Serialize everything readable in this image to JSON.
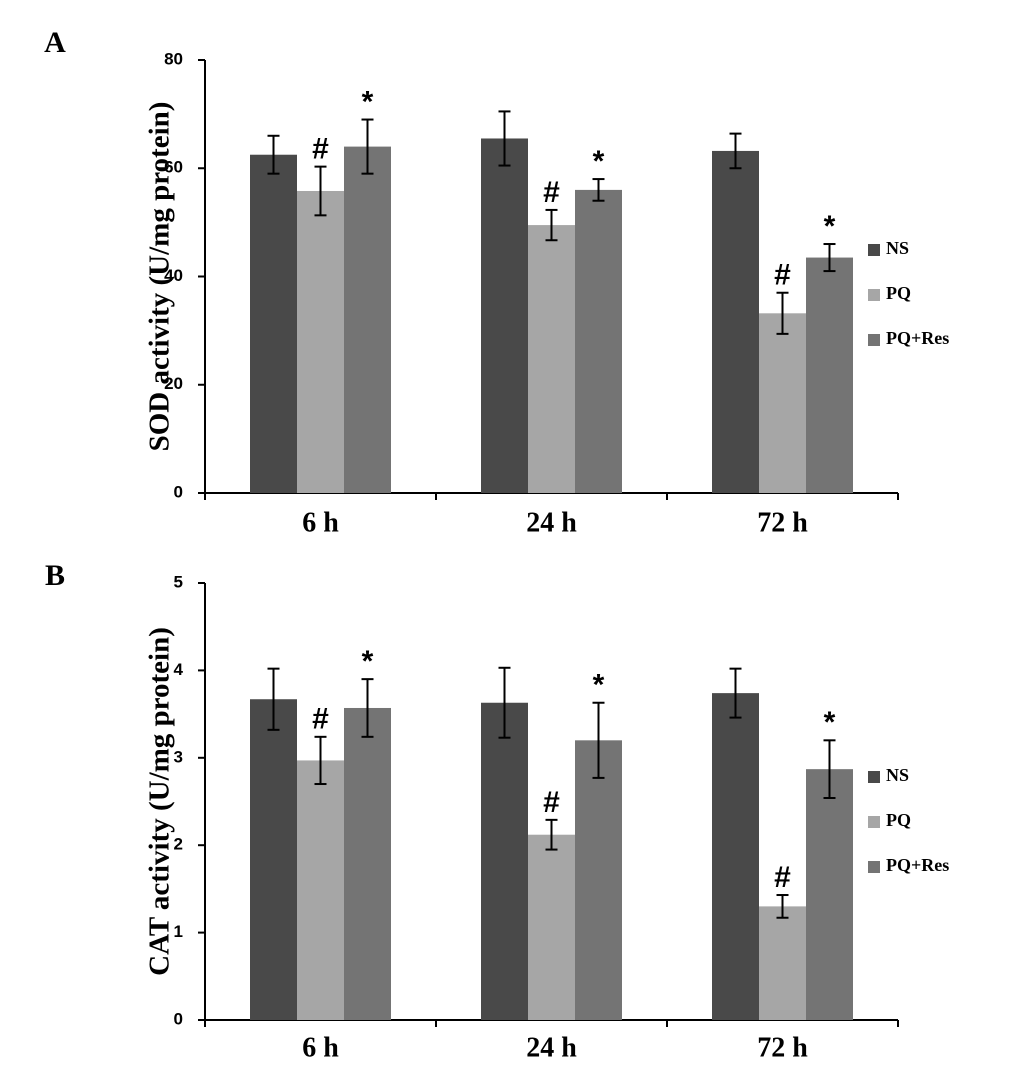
{
  "chart_data": [
    {
      "type": "bar",
      "panel": "A",
      "ylabel": "SOD activity (U/mg protein)",
      "categories": [
        "6 h",
        "24 h",
        "72 h"
      ],
      "ylim": [
        0,
        80
      ],
      "yticks": [
        0,
        20,
        40,
        60,
        80
      ],
      "series": [
        {
          "name": "NS",
          "color": "#494949",
          "values": [
            62.5,
            65.5,
            63.2
          ],
          "errors": [
            3.5,
            5,
            3.2
          ]
        },
        {
          "name": "PQ",
          "color": "#a6a6a6",
          "values": [
            55.8,
            49.5,
            33.2
          ],
          "errors": [
            4.5,
            2.8,
            3.8
          ],
          "labels": [
            "#",
            "#",
            "#"
          ]
        },
        {
          "name": "PQ+Res",
          "color": "#747474",
          "values": [
            64,
            56,
            43.5
          ],
          "errors": [
            5,
            2,
            2.5
          ],
          "labels": [
            "*",
            "*",
            "*"
          ]
        }
      ]
    },
    {
      "type": "bar",
      "panel": "B",
      "ylabel": "CAT activity (U/mg protein)",
      "categories": [
        "6 h",
        "24 h",
        "72 h"
      ],
      "ylim": [
        0,
        5
      ],
      "yticks": [
        0,
        1,
        2,
        3,
        4,
        5
      ],
      "series": [
        {
          "name": "NS",
          "color": "#494949",
          "values": [
            3.67,
            3.63,
            3.74
          ],
          "errors": [
            0.35,
            0.4,
            0.28
          ]
        },
        {
          "name": "PQ",
          "color": "#a6a6a6",
          "values": [
            2.97,
            2.12,
            1.3
          ],
          "errors": [
            0.27,
            0.17,
            0.13
          ],
          "labels": [
            "#",
            "#",
            "#"
          ]
        },
        {
          "name": "PQ+Res",
          "color": "#747474",
          "values": [
            3.57,
            3.2,
            2.87
          ],
          "errors": [
            0.33,
            0.43,
            0.33
          ],
          "labels": [
            "*",
            "*",
            "*"
          ]
        }
      ]
    }
  ]
}
